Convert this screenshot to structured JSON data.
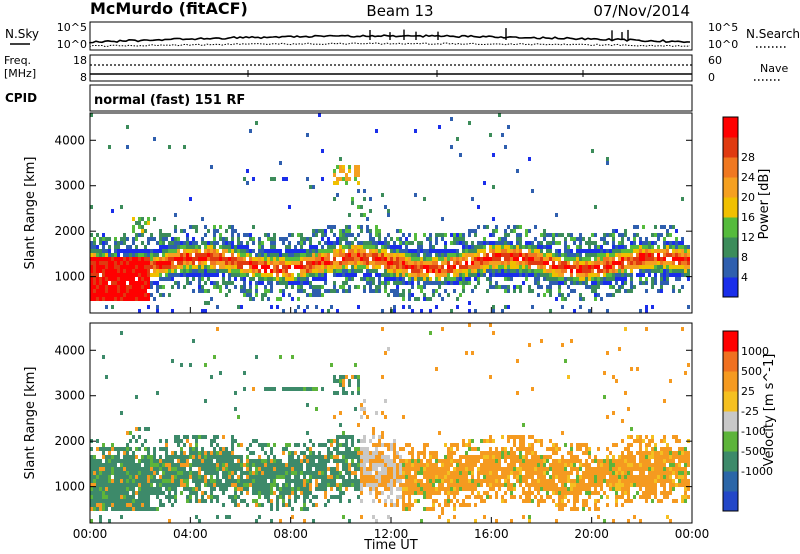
{
  "header": {
    "station": "McMurdo (fitACF)",
    "beam": "Beam 13",
    "date": "07/Nov/2014"
  },
  "side_labels": {
    "n_sky": "N.Sky",
    "n_search": "N.Search",
    "freq_line1": "Freq.",
    "freq_line2": "[MHz]",
    "nave": "Nave",
    "cpid": "CPID",
    "cpid_value": "normal (fast) 151 RF"
  },
  "noise_panel": {
    "left_ticks": [
      "10^5",
      "10^0"
    ],
    "right_ticks": [
      "10^5",
      "10^0"
    ]
  },
  "freq_panel": {
    "left_ticks": [
      "18",
      "8"
    ],
    "right_ticks": [
      "60",
      "0"
    ]
  },
  "colors": {
    "power_scale": [
      "#1a2eea",
      "#2f5fae",
      "#3c8c5a",
      "#55bb3c",
      "#f0c000",
      "#f5a020",
      "#f07820",
      "#e03a10",
      "#ff0000"
    ],
    "velocity_scale": [
      "#2347c8",
      "#2b66a8",
      "#3d8a6a",
      "#5db43a",
      "#c8c8c8",
      "#f5c020",
      "#f59a20",
      "#f07020",
      "#ff0000"
    ]
  },
  "chart_data": [
    {
      "type": "heatmap",
      "name": "power",
      "xlabel": "",
      "ylabel": "Slant Range [km]",
      "y_ticks": [
        "1000",
        "2000",
        "3000",
        "4000"
      ],
      "ylim": [
        200,
        4600
      ],
      "colorbar_label": "Power [dB]",
      "colorbar_ticks": [
        "4",
        "8",
        "12",
        "16",
        "20",
        "24",
        "28"
      ]
    },
    {
      "type": "heatmap",
      "name": "velocity",
      "xlabel": "Time UT",
      "x_ticks": [
        "00:00",
        "04:00",
        "08:00",
        "12:00",
        "16:00",
        "20:00",
        "00:00"
      ],
      "ylabel": "Slant Range [km]",
      "y_ticks": [
        "1000",
        "2000",
        "3000",
        "4000"
      ],
      "ylim": [
        200,
        4600
      ],
      "colorbar_label": "Velocity [m s^-1]",
      "colorbar_ticks": [
        "1000",
        "500",
        "25",
        "-25",
        "-100",
        "-500",
        "-1000"
      ]
    }
  ]
}
